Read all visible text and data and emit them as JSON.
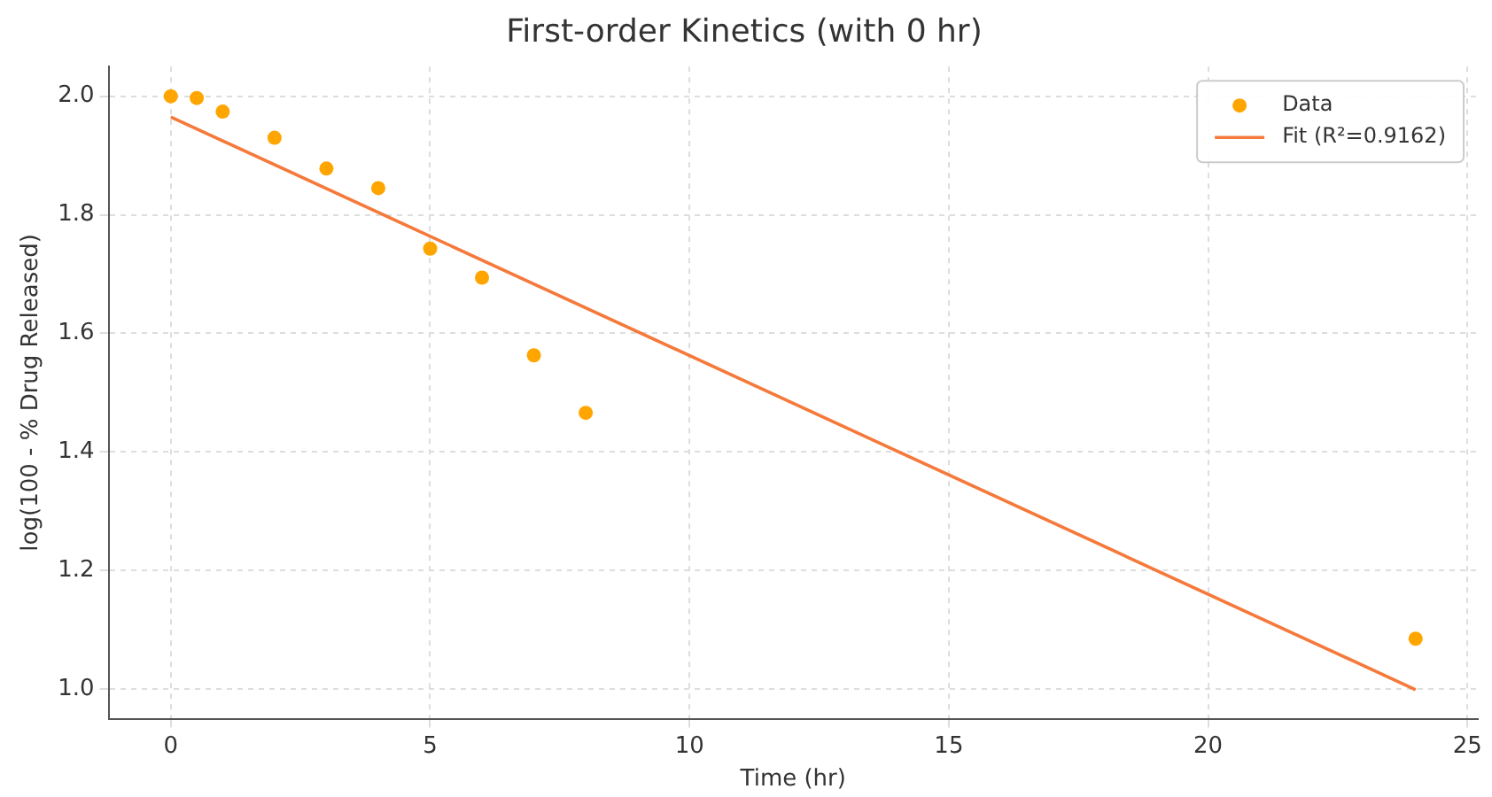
{
  "chart_data": {
    "type": "scatter",
    "title": "First-order Kinetics (with 0 hr)",
    "xlabel": "Time (hr)",
    "ylabel": "log(100 - % Drug Released)",
    "series": [
      {
        "name": "Data",
        "color": "#ffa500",
        "marker": "circle",
        "x": [
          0,
          0.5,
          1,
          2,
          3,
          4,
          5,
          6,
          7,
          8,
          24
        ],
        "values": [
          2.0,
          1.997,
          1.974,
          1.93,
          1.878,
          1.845,
          1.743,
          1.694,
          1.563,
          1.466,
          1.085
        ]
      },
      {
        "name": "Fit (R²=0.9162)",
        "type": "line",
        "color": "#f5793a",
        "marker": "none",
        "line_style": "solid",
        "x": [
          0,
          24
        ],
        "values": [
          1.965,
          0.999
        ]
      }
    ],
    "xlim": [
      -1.2,
      25.2
    ],
    "xticks": [
      0,
      5,
      10,
      15,
      20,
      25
    ],
    "ylim": [
      0.95,
      2.05
    ],
    "yticks": [
      {
        "value": 1.0,
        "label": "1.0"
      },
      {
        "value": 1.2,
        "label": "1.2"
      },
      {
        "value": 1.4,
        "label": "1.4"
      },
      {
        "value": 1.6,
        "label": "1.6"
      },
      {
        "value": 1.8,
        "label": "1.8"
      },
      {
        "value": 2.0,
        "label": "2.0"
      }
    ],
    "grid": true,
    "legend": "top right"
  }
}
